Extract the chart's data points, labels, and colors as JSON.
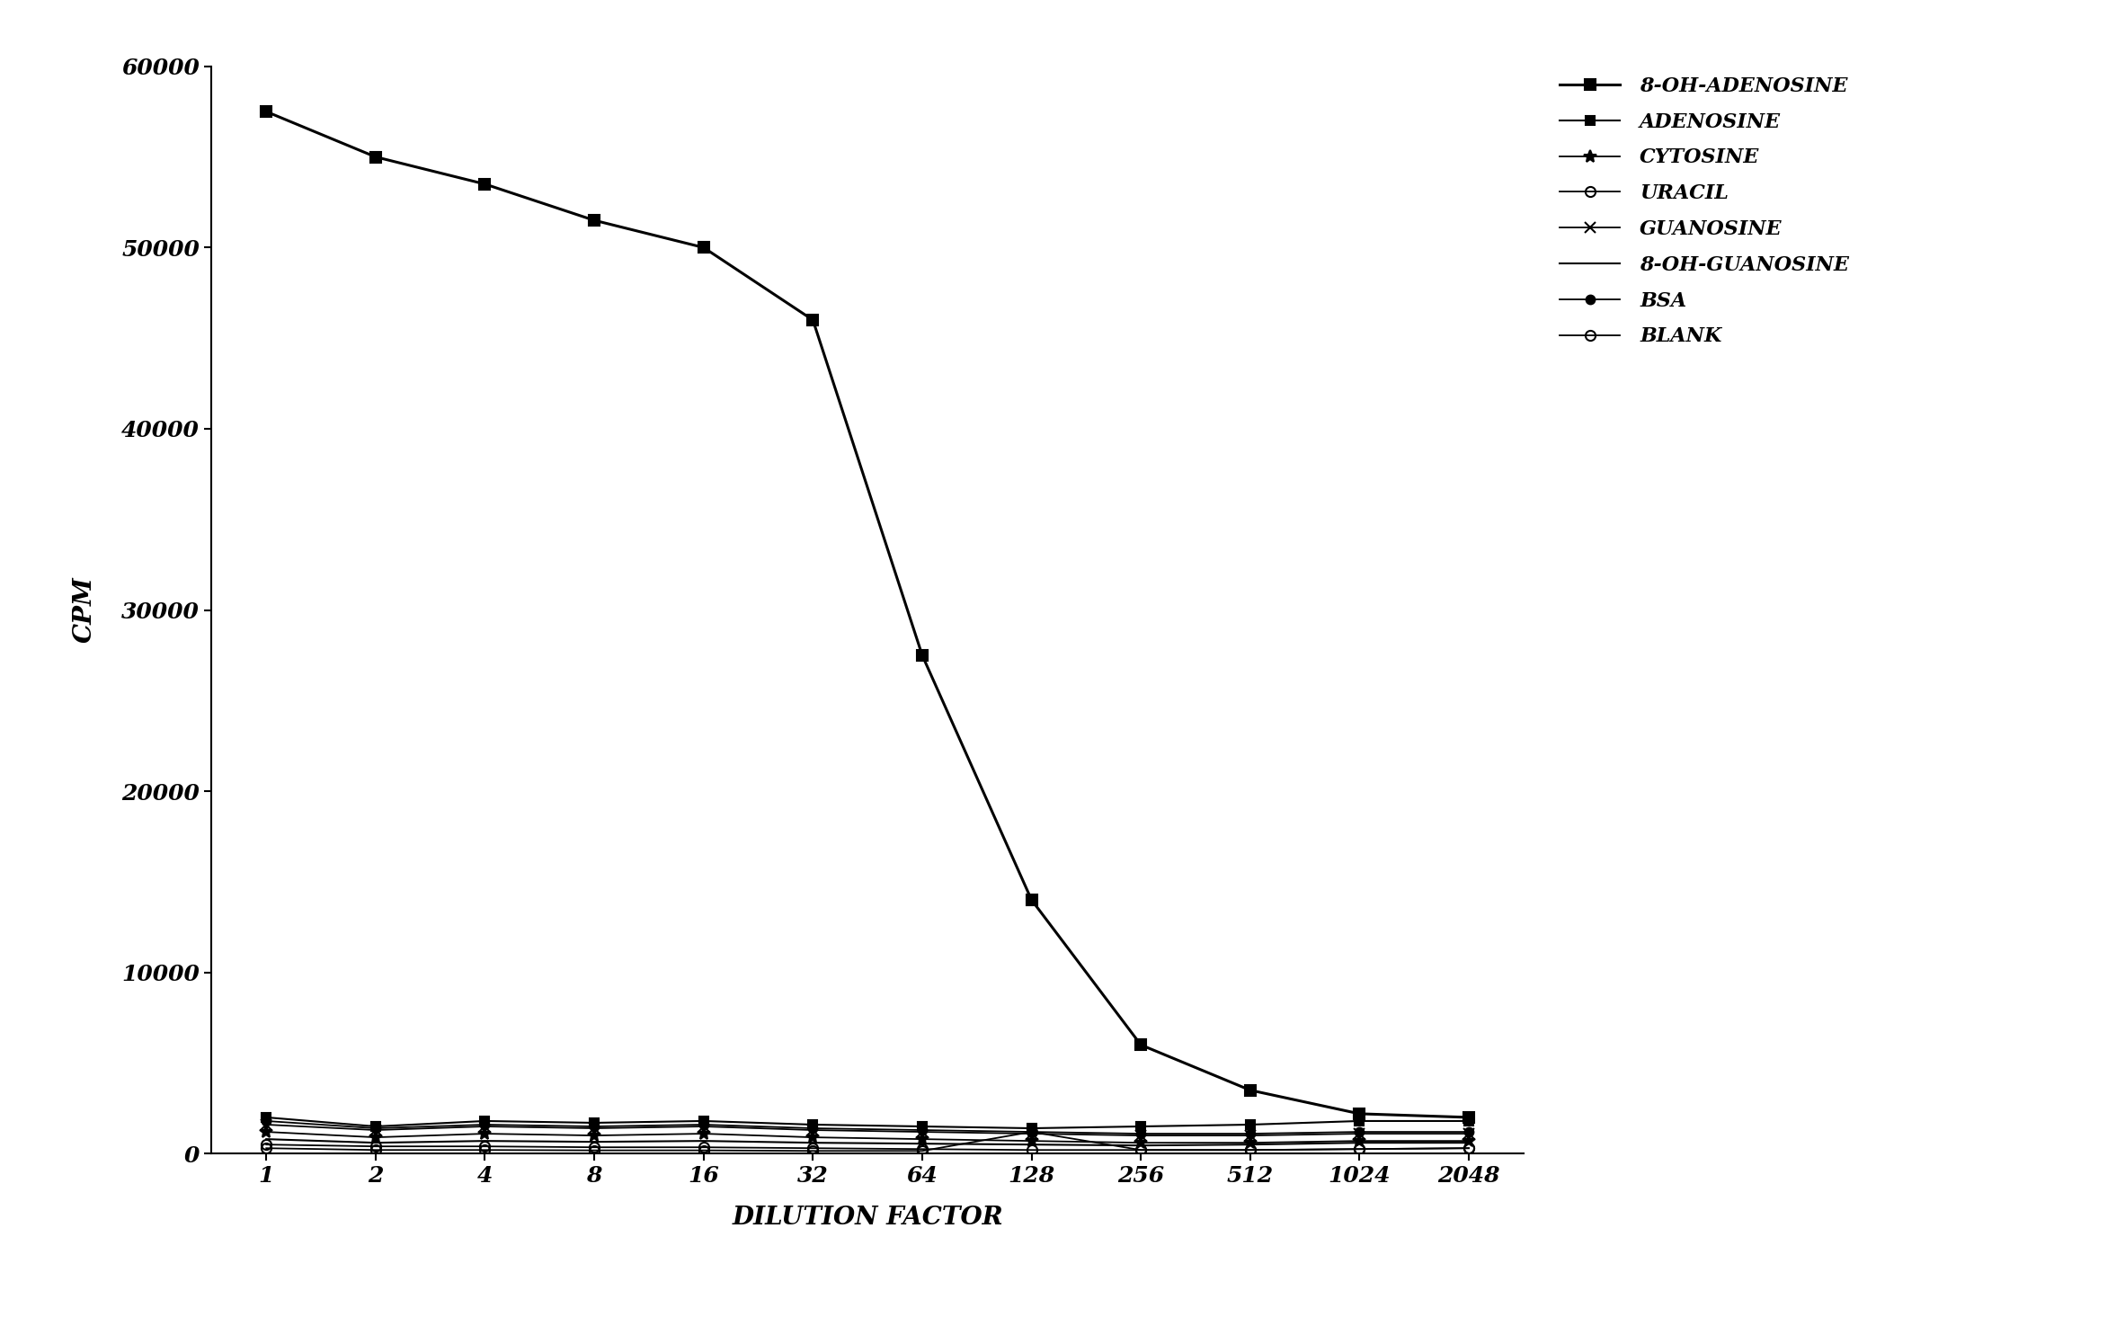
{
  "x_labels": [
    "1",
    "2",
    "4",
    "8",
    "16",
    "32",
    "64",
    "128",
    "256",
    "512",
    "1024",
    "2048"
  ],
  "x_positions": [
    0,
    1,
    2,
    3,
    4,
    5,
    6,
    7,
    8,
    9,
    10,
    11
  ],
  "series": {
    "8-OH-ADENOSINE": {
      "values": [
        57500,
        55000,
        53500,
        51500,
        50000,
        46000,
        27500,
        14000,
        6000,
        3500,
        2200,
        2000
      ],
      "marker": "s",
      "linestyle": "-",
      "linewidth": 2.2,
      "markersize": 9,
      "fillstyle": "full"
    },
    "ADENOSINE": {
      "values": [
        2000,
        1500,
        1800,
        1700,
        1800,
        1600,
        1500,
        1400,
        1500,
        1600,
        1800,
        1800
      ],
      "marker": "s",
      "linestyle": "-",
      "linewidth": 1.5,
      "markersize": 7,
      "fillstyle": "full"
    },
    "CYTOSINE": {
      "values": [
        1200,
        900,
        1100,
        1000,
        1100,
        900,
        800,
        700,
        600,
        600,
        700,
        700
      ],
      "marker": "*",
      "linestyle": "-",
      "linewidth": 1.3,
      "markersize": 10,
      "fillstyle": "full"
    },
    "URACIL": {
      "values": [
        500,
        400,
        400,
        350,
        350,
        300,
        250,
        200,
        200,
        200,
        250,
        300
      ],
      "marker": "o",
      "linestyle": "-",
      "linewidth": 1.3,
      "markersize": 8,
      "fillstyle": "none"
    },
    "GUANOSINE": {
      "values": [
        1600,
        1300,
        1500,
        1400,
        1500,
        1300,
        1200,
        1100,
        1000,
        1000,
        1100,
        1100
      ],
      "marker": "x",
      "linestyle": "-",
      "linewidth": 1.3,
      "markersize": 9,
      "fillstyle": "full"
    },
    "8-OH-GUANOSINE": {
      "values": [
        800,
        600,
        700,
        650,
        700,
        600,
        550,
        500,
        450,
        500,
        600,
        600
      ],
      "marker": "none",
      "linestyle": "-",
      "linewidth": 1.5,
      "markersize": 0,
      "fillstyle": "full"
    },
    "BSA": {
      "values": [
        1800,
        1400,
        1600,
        1500,
        1600,
        1400,
        1300,
        1200,
        1100,
        1100,
        1200,
        1200
      ],
      "marker": "o",
      "linestyle": "-",
      "linewidth": 1.3,
      "markersize": 7,
      "fillstyle": "full"
    },
    "BLANK": {
      "values": [
        300,
        200,
        200,
        180,
        180,
        150,
        150,
        1200,
        200,
        200,
        250,
        300
      ],
      "marker": "o",
      "linestyle": "-",
      "linewidth": 1.3,
      "markersize": 8,
      "fillstyle": "none"
    }
  },
  "series_order": [
    "8-OH-ADENOSINE",
    "ADENOSINE",
    "CYTOSINE",
    "URACIL",
    "GUANOSINE",
    "8-OH-GUANOSINE",
    "BSA",
    "BLANK"
  ],
  "ylabel": "CPM",
  "xlabel": "DILUTION FACTOR",
  "ylim": [
    0,
    60000
  ],
  "ytick_values": [
    0,
    10000,
    20000,
    30000,
    40000,
    50000,
    60000
  ],
  "ytick_labels": [
    "0",
    "10000",
    "20000",
    "30000",
    "40000",
    "50000",
    "60000"
  ],
  "background_color": "#ffffff",
  "color": "#000000",
  "tick_fontsize": 18,
  "label_fontsize": 20,
  "legend_fontsize": 16
}
